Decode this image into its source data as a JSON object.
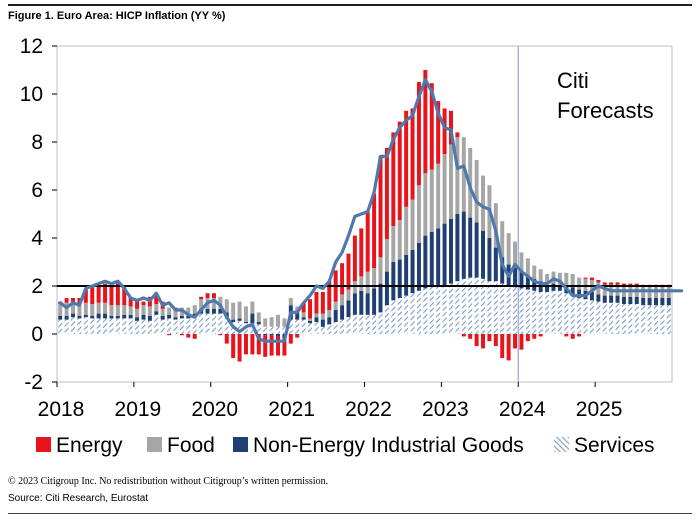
{
  "figure_title": "Figure 1. Euro Area: HICP Inflation (YY %)",
  "copyright": "© 2023 Citigroup Inc. No redistribution without Citigroup’s written permission.",
  "source": "Source: Citi Research, Eurostat",
  "colors": {
    "energy": "#e8141b",
    "food": "#a6a6a6",
    "neig": "#1f3f72",
    "services": "#7f9cc5",
    "headline": "#4f79ad",
    "target": "#000000",
    "forecast_divider": "#8fa9cc"
  },
  "chart_data": {
    "type": "bar",
    "stacked": true,
    "title": "Euro Area: HICP Inflation (YY %)",
    "xlabel": "",
    "ylabel": "",
    "ylim": [
      -2,
      12
    ],
    "yticks": [
      -2,
      0,
      2,
      4,
      6,
      8,
      10,
      12
    ],
    "xticks": [
      "2018",
      "2019",
      "2020",
      "2021",
      "2022",
      "2023",
      "2024",
      "2025"
    ],
    "x_start": "2018-01",
    "x_end": "2025-12",
    "frequency": "monthly",
    "grid": false,
    "legend_position": "bottom",
    "annotation": {
      "text": [
        "Citi",
        "Forecasts"
      ],
      "forecast_start": "2024-01"
    },
    "reference_line": {
      "y": 2,
      "label": ""
    },
    "series": [
      {
        "name": "Energy",
        "type": "bar",
        "values": [
          0.1,
          0.2,
          0.15,
          0.25,
          0.55,
          0.7,
          0.75,
          0.8,
          0.85,
          0.9,
          0.75,
          0.35,
          0.35,
          0.15,
          0.4,
          0.45,
          0.3,
          -0.05,
          0.05,
          -0.05,
          -0.15,
          -0.2,
          0.1,
          0.2,
          0.2,
          -0.05,
          -0.4,
          -1.0,
          -1.15,
          -0.85,
          -0.85,
          -0.85,
          -0.9,
          -0.85,
          -0.8,
          -0.7,
          -0.4,
          -0.15,
          0.4,
          0.8,
          0.9,
          0.9,
          1.2,
          1.3,
          1.3,
          1.5,
          1.9,
          2.0,
          2.5,
          3.1,
          4.2,
          3.8,
          3.9,
          4.1,
          4.0,
          3.8,
          4.3,
          4.3,
          3.6,
          2.6,
          1.9,
          1.4,
          0.2,
          -0.1,
          -0.2,
          -0.5,
          -0.6,
          -0.3,
          -0.5,
          -1.0,
          -1.1,
          -0.6,
          -0.65,
          -0.3,
          -0.2,
          -0.1,
          0.0,
          0.0,
          0.0,
          -0.1,
          -0.2,
          -0.1,
          0.05,
          0.1,
          0.1,
          0.1,
          0.1,
          0.1,
          0.1,
          0.1,
          0.1,
          0.1,
          0.1,
          0.1,
          0.1,
          0.1,
          0.1,
          0.1
        ]
      },
      {
        "name": "Food",
        "type": "bar",
        "values": [
          0.5,
          0.55,
          0.5,
          0.5,
          0.5,
          0.5,
          0.45,
          0.45,
          0.45,
          0.45,
          0.4,
          0.35,
          0.35,
          0.4,
          0.4,
          0.3,
          0.3,
          0.3,
          0.35,
          0.35,
          0.35,
          0.35,
          0.4,
          0.45,
          0.45,
          0.5,
          0.55,
          0.7,
          0.7,
          0.65,
          0.5,
          0.4,
          0.35,
          0.4,
          0.5,
          0.35,
          0.3,
          0.25,
          0.2,
          0.1,
          0.15,
          0.25,
          0.3,
          0.35,
          0.45,
          0.45,
          0.5,
          0.6,
          0.9,
          0.85,
          1.1,
          1.35,
          1.5,
          1.65,
          2.0,
          2.1,
          2.4,
          2.6,
          2.6,
          2.7,
          2.9,
          3.1,
          3.2,
          3.1,
          2.9,
          2.6,
          2.3,
          2.2,
          1.85,
          1.5,
          1.3,
          1.1,
          0.8,
          0.7,
          0.55,
          0.5,
          0.45,
          0.5,
          0.5,
          0.55,
          0.55,
          0.5,
          0.5,
          0.5,
          0.5,
          0.45,
          0.45,
          0.45,
          0.45,
          0.45,
          0.45,
          0.45,
          0.45,
          0.45,
          0.45,
          0.45,
          0.45,
          0.45
        ]
      },
      {
        "name": "Non-Energy Industrial Goods",
        "type": "bar",
        "values": [
          0.15,
          0.15,
          0.15,
          0.1,
          0.1,
          0.1,
          0.2,
          0.2,
          0.1,
          0.1,
          0.15,
          0.15,
          0.15,
          0.2,
          0.2,
          0.15,
          0.15,
          0.15,
          0.1,
          0.1,
          0.1,
          0.15,
          0.2,
          0.2,
          0.2,
          0.2,
          0.2,
          0.1,
          0.1,
          0.05,
          0.4,
          0.1,
          -0.05,
          -0.05,
          -0.1,
          -0.2,
          0.6,
          0.3,
          0.1,
          0.1,
          0.2,
          0.3,
          0.3,
          0.5,
          0.6,
          0.7,
          0.9,
          1.0,
          0.9,
          1.1,
          1.2,
          1.4,
          1.6,
          1.6,
          1.7,
          1.8,
          2.0,
          2.2,
          2.3,
          2.4,
          2.6,
          2.7,
          2.8,
          2.8,
          2.5,
          2.3,
          2.0,
          1.8,
          1.4,
          1.1,
          0.9,
          0.8,
          0.7,
          0.6,
          0.5,
          0.45,
          0.3,
          0.3,
          0.25,
          0.3,
          0.35,
          0.35,
          0.35,
          0.35,
          0.3,
          0.3,
          0.3,
          0.3,
          0.3,
          0.3,
          0.3,
          0.3,
          0.3,
          0.3,
          0.3,
          0.3,
          0.3,
          0.3
        ]
      },
      {
        "name": "Services",
        "type": "bar",
        "values": [
          0.6,
          0.6,
          0.7,
          0.65,
          0.7,
          0.65,
          0.65,
          0.65,
          0.65,
          0.65,
          0.65,
          0.65,
          0.55,
          0.6,
          0.55,
          0.8,
          0.6,
          0.65,
          0.6,
          0.65,
          0.65,
          0.7,
          0.85,
          0.85,
          0.85,
          0.85,
          0.7,
          0.5,
          0.55,
          0.45,
          0.45,
          0.4,
          0.3,
          0.3,
          0.3,
          0.3,
          0.6,
          0.6,
          0.6,
          0.45,
          0.5,
          0.3,
          0.4,
          0.5,
          0.6,
          0.7,
          0.8,
          0.8,
          0.8,
          0.8,
          0.9,
          1.2,
          1.4,
          1.5,
          1.6,
          1.7,
          1.8,
          1.9,
          1.95,
          2.0,
          2.0,
          2.1,
          2.2,
          2.3,
          2.35,
          2.35,
          2.3,
          2.2,
          2.2,
          2.1,
          2.0,
          1.95,
          1.9,
          1.85,
          1.8,
          1.75,
          1.75,
          1.8,
          1.8,
          1.7,
          1.6,
          1.5,
          1.45,
          1.4,
          1.35,
          1.3,
          1.3,
          1.3,
          1.25,
          1.25,
          1.25,
          1.2,
          1.2,
          1.2,
          1.2,
          1.2,
          1.2,
          1.2
        ]
      },
      {
        "name": "",
        "type": "line",
        "values": [
          1.3,
          1.1,
          1.3,
          1.2,
          1.9,
          2.0,
          2.1,
          2.2,
          2.1,
          2.2,
          1.9,
          1.5,
          1.4,
          1.5,
          1.4,
          1.7,
          1.2,
          1.3,
          1.0,
          1.0,
          0.8,
          0.7,
          1.0,
          1.3,
          1.4,
          1.2,
          0.7,
          0.3,
          0.1,
          0.3,
          0.4,
          -0.2,
          -0.3,
          -0.3,
          -0.3,
          -0.3,
          0.9,
          0.9,
          1.3,
          1.6,
          2.0,
          1.9,
          2.2,
          3.0,
          3.4,
          4.1,
          4.9,
          5.0,
          5.1,
          5.9,
          7.4,
          7.4,
          8.1,
          8.6,
          8.9,
          9.1,
          9.9,
          10.6,
          10.1,
          9.2,
          8.6,
          8.5,
          6.9,
          7.0,
          6.1,
          5.5,
          5.3,
          5.2,
          4.3,
          2.9,
          2.4,
          2.9,
          2.6,
          2.4,
          2.2,
          2.1,
          2.1,
          2.3,
          2.2,
          1.9,
          1.6,
          1.6,
          1.6,
          1.8,
          2.0,
          1.9,
          1.8,
          1.8,
          1.8,
          1.8,
          1.8,
          1.8,
          1.8,
          1.8,
          1.8,
          1.8,
          1.8,
          1.8
        ]
      }
    ]
  }
}
